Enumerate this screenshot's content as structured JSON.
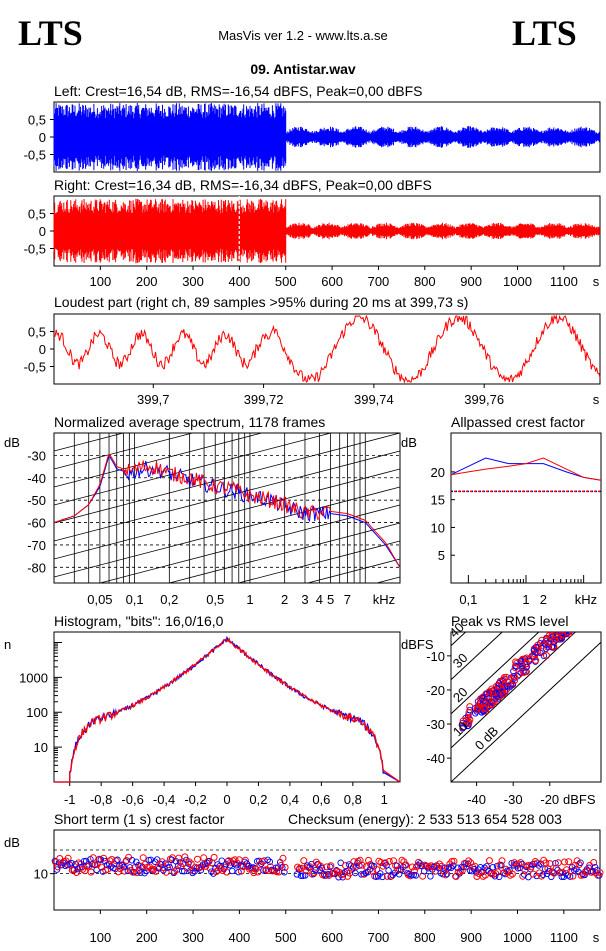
{
  "header": {
    "logo_left": "LTS",
    "logo_right": "LTS",
    "app_title": "MasVis ver 1.2 - www.lts.a.se",
    "file_title": "09. Antistar.wav",
    "checksum": "Checksum (energy):  2 533 513 654 528 003"
  },
  "colors": {
    "left": "#0000ff",
    "right": "#ff0000",
    "text": "#000000"
  },
  "chart_data": [
    {
      "id": "left",
      "type": "line",
      "title": "Left: Crest=16,54 dB, RMS=-16,54 dBFS, Peak=0,00 dBFS",
      "ytick_labels": [
        "0.5",
        "0",
        "-0.5"
      ],
      "ylim": [
        -1,
        1
      ],
      "xlim": [
        0,
        1178
      ],
      "segments": [
        {
          "x_range": [
            0,
            500
          ],
          "amplitude": 1.0
        },
        {
          "x_range": [
            500,
            1178
          ],
          "amplitude": 0.32
        }
      ]
    },
    {
      "id": "right",
      "type": "line",
      "title": "Right: Crest=16,34 dB, RMS=-16,34 dBFS, Peak=0,00 dBFS",
      "ytick_labels": [
        "0.5",
        "0",
        "-0.5"
      ],
      "ylim": [
        -1,
        1
      ],
      "xlim": [
        0,
        1178
      ],
      "xtick_labels": [
        "100",
        "200",
        "300",
        "400",
        "500",
        "600",
        "700",
        "800",
        "900",
        "1000",
        "1100",
        "s"
      ],
      "xticks": [
        100,
        200,
        300,
        400,
        500,
        600,
        700,
        800,
        900,
        1000,
        1100
      ],
      "marker_x": 399.73,
      "segments": [
        {
          "x_range": [
            0,
            500
          ],
          "amplitude": 0.95
        },
        {
          "x_range": [
            500,
            1178
          ],
          "amplitude": 0.25
        }
      ]
    },
    {
      "id": "loudest",
      "type": "line",
      "title": "Loudest part (right ch, 89 samples >95% during 20 ms at 399,73 s)",
      "ytick_labels": [
        "0.5",
        "0",
        "-0.5"
      ],
      "ylim": [
        -1,
        1
      ],
      "xlim": [
        399.682,
        399.781
      ],
      "xticks": [
        399.7,
        399.72,
        399.74,
        399.76
      ],
      "xtick_labels": [
        "399,7",
        "399,72",
        "399,74",
        "399,76",
        "s"
      ]
    },
    {
      "id": "spectrum",
      "type": "line",
      "title": "Normalized average spectrum, 1178 frames",
      "ylabel": "dB",
      "ytick_labels": [
        "-30",
        "-40",
        "-50",
        "-60",
        "-70",
        "-80"
      ],
      "yticks": [
        -30,
        -40,
        -50,
        -60,
        -70,
        -80
      ],
      "ylim": [
        -87,
        -20
      ],
      "xlim_khz": [
        0.02,
        20
      ],
      "xscale": "log",
      "xtick_labels": [
        "0,05",
        "0,1",
        "0,2",
        "0,5",
        "1",
        "2",
        "3",
        "4",
        "5",
        "7",
        "kHz"
      ],
      "xticks_khz": [
        0.05,
        0.1,
        0.2,
        0.5,
        1,
        2,
        3,
        4,
        5,
        7
      ],
      "series": [
        {
          "name": "Left",
          "color": "#0000ff",
          "x": [
            0.02,
            0.03,
            0.04,
            0.05,
            0.06,
            0.07,
            0.09,
            0.12,
            0.15,
            0.2,
            0.3,
            0.5,
            0.7,
            1,
            1.5,
            2,
            3,
            5,
            7,
            10,
            15,
            20
          ],
          "y": [
            -60,
            -57,
            -52,
            -44,
            -30,
            -36,
            -38,
            -36,
            -36,
            -38,
            -41,
            -44,
            -46,
            -48,
            -50,
            -53,
            -56,
            -56,
            -57,
            -60,
            -70,
            -80
          ]
        },
        {
          "name": "Right",
          "color": "#ff0000",
          "x": [
            0.02,
            0.03,
            0.04,
            0.05,
            0.06,
            0.07,
            0.09,
            0.12,
            0.15,
            0.2,
            0.3,
            0.5,
            0.7,
            1,
            1.5,
            2,
            3,
            5,
            7,
            10,
            15,
            20
          ],
          "y": [
            -60,
            -57,
            -52,
            -43,
            -29,
            -35,
            -37,
            -35,
            -35,
            -38,
            -40,
            -44,
            -45,
            -48,
            -50,
            -52,
            -56,
            -55,
            -56,
            -59,
            -69,
            -80
          ]
        }
      ]
    },
    {
      "id": "allpassed",
      "type": "line",
      "title": "Allpassed crest factor",
      "ylabel": "dB",
      "ytick_labels": [
        "20",
        "15",
        "10",
        "5"
      ],
      "yticks": [
        20,
        15,
        10,
        5
      ],
      "ylim": [
        0,
        27
      ],
      "xscale": "log",
      "xlim_khz": [
        0.05,
        20
      ],
      "xtick_labels": [
        "0,1",
        "1",
        "2",
        "kHz"
      ],
      "xticks_khz": [
        0.1,
        1,
        2
      ],
      "reference_line": 16.5,
      "series": [
        {
          "name": "Left",
          "color": "#0000ff",
          "x": [
            0.05,
            0.1,
            0.2,
            0.5,
            1,
            2,
            5,
            10,
            20
          ],
          "y": [
            19.5,
            21,
            22.5,
            21.5,
            21.5,
            21.5,
            20,
            19,
            18.5
          ]
        },
        {
          "name": "Right",
          "color": "#ff0000",
          "x": [
            0.05,
            0.1,
            0.2,
            0.5,
            1,
            2,
            5,
            10,
            20
          ],
          "y": [
            19.5,
            20,
            20.5,
            21,
            21.5,
            22.5,
            20.5,
            19,
            18.5
          ]
        }
      ]
    },
    {
      "id": "histogram",
      "type": "line",
      "title": "Histogram, \"bits\": 16,0/16,0",
      "ylabel": "n",
      "yscale": "log",
      "ytick_labels": [
        "1000",
        "100",
        "10"
      ],
      "yticks": [
        1000,
        100,
        10
      ],
      "ylim": [
        1,
        20000
      ],
      "xlim": [
        -1.1,
        1.1
      ],
      "xticks": [
        -1,
        -0.8,
        -0.6,
        -0.4,
        -0.2,
        0,
        0.2,
        0.4,
        0.6,
        0.8,
        1
      ],
      "xtick_labels": [
        "-1",
        "-0,8",
        "-0,6",
        "-0,4",
        "-0,2",
        "0",
        "0,2",
        "0,4",
        "0,6",
        "0,8",
        "1"
      ],
      "series": [
        {
          "name": "Left",
          "color": "#0000ff"
        },
        {
          "name": "Right",
          "color": "#ff0000"
        }
      ]
    },
    {
      "id": "peakrms",
      "type": "scatter",
      "title": "Peak vs RMS level",
      "ylabel": "dBFS",
      "xlabel": "dBFS",
      "ytick_labels": [
        "-10",
        "-20",
        "-30",
        "-40"
      ],
      "yticks": [
        -10,
        -20,
        -30,
        -40
      ],
      "xtick_labels": [
        "-40",
        "-30",
        "-20"
      ],
      "xticks": [
        -40,
        -30,
        -20
      ],
      "xlim": [
        -47,
        -6
      ],
      "ylim": [
        -47,
        -3
      ],
      "diagonal_labels": [
        "40",
        "30",
        "20",
        "10",
        "0 dB"
      ],
      "diagonal_offsets": [
        40,
        30,
        20,
        10,
        0
      ]
    },
    {
      "id": "shortcrest",
      "type": "scatter",
      "title": "Short term (1 s) crest factor",
      "ylabel": "dB",
      "ytick_labels": [
        "10"
      ],
      "yticks": [
        10
      ],
      "reference_lines": [
        16.5,
        10
      ],
      "ylim": [
        0,
        22
      ],
      "xlim": [
        0,
        1178
      ],
      "xtick_labels": [
        "100",
        "200",
        "300",
        "400",
        "500",
        "600",
        "700",
        "800",
        "900",
        "1000",
        "1100",
        "s"
      ],
      "xticks": [
        100,
        200,
        300,
        400,
        500,
        600,
        700,
        800,
        900,
        1000,
        1100
      ]
    }
  ]
}
